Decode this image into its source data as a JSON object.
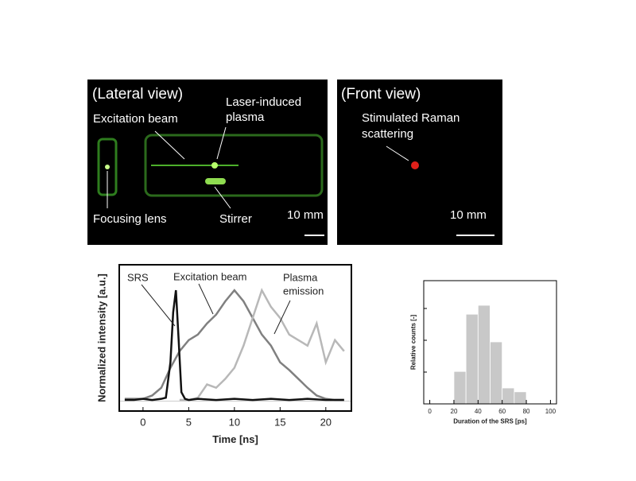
{
  "photos": [
    {
      "title": "(Lateral view)",
      "labels": [
        "Excitation beam",
        "Laser-induced",
        "plasma",
        "Focusing lens",
        "Stirrer"
      ],
      "scale": "10 mm"
    },
    {
      "title": "(Front view)",
      "labels": [
        "Stimulated Raman",
        "scattering"
      ],
      "scale": "10 mm"
    }
  ],
  "chart_data": [
    {
      "type": "line",
      "xlabel": "Time [ns]",
      "ylabel": "Normalized intensity [a.u.]",
      "annotations": [
        "SRS",
        "Excitation beam",
        "Plasma",
        "emission"
      ],
      "xlim": [
        -2.6,
        22.8
      ],
      "xticks": [
        0,
        5,
        10,
        15,
        20
      ],
      "ylim": [
        -0.09,
        1.23
      ],
      "series": [
        {
          "name": "Excitation beam",
          "color": "#808080",
          "x": [
            -2,
            -1,
            0,
            1,
            2,
            3,
            4,
            5,
            6,
            7,
            8,
            9,
            10,
            11,
            12,
            13,
            14,
            15,
            16,
            17,
            18,
            19,
            20,
            21,
            22
          ],
          "values": [
            0.02,
            0.02,
            0.02,
            0.05,
            0.12,
            0.3,
            0.45,
            0.55,
            0.6,
            0.7,
            0.78,
            0.9,
            1.0,
            0.9,
            0.75,
            0.6,
            0.5,
            0.35,
            0.28,
            0.2,
            0.12,
            0.05,
            0.02,
            0.01,
            0.01
          ]
        },
        {
          "name": "Plasma emission",
          "color": "#b8b8b8",
          "x": [
            4,
            5,
            6,
            7,
            8,
            9,
            10,
            11,
            12,
            13,
            14,
            15,
            16,
            17,
            18,
            19,
            20,
            21,
            22
          ],
          "values": [
            0.01,
            0.01,
            0.03,
            0.15,
            0.12,
            0.2,
            0.3,
            0.5,
            0.75,
            1.0,
            0.85,
            0.75,
            0.6,
            0.55,
            0.5,
            0.7,
            0.35,
            0.55,
            0.45
          ]
        },
        {
          "name": "SRS",
          "color": "#111111",
          "x": [
            -2,
            -1,
            0,
            1,
            2,
            2.5,
            3,
            3.3,
            3.6,
            3.9,
            4.2,
            4.6,
            5,
            6,
            8,
            10,
            12,
            14,
            16,
            18,
            20,
            22
          ],
          "values": [
            0.01,
            0.01,
            0.02,
            0.01,
            0.02,
            0.03,
            0.35,
            0.8,
            1.0,
            0.55,
            0.08,
            0.02,
            0.01,
            0.02,
            0.01,
            0.02,
            0.01,
            0.02,
            0.01,
            0.02,
            0.01,
            0.01
          ]
        }
      ]
    },
    {
      "type": "histogram",
      "xlabel": "Duration of the SRS [ps]",
      "ylabel": "Relative counts [-]",
      "bins": [
        20,
        30,
        40,
        50,
        60,
        70,
        80
      ],
      "values": [
        1.02,
        2.82,
        3.1,
        1.95,
        0.5,
        0.38
      ],
      "color": "#c8c8c8",
      "xlim": [
        -5,
        105
      ],
      "xticks": [
        0,
        20,
        40,
        60,
        80,
        100
      ],
      "ylim": [
        0,
        3.875
      ],
      "yticks": [
        1,
        2,
        3
      ]
    }
  ]
}
